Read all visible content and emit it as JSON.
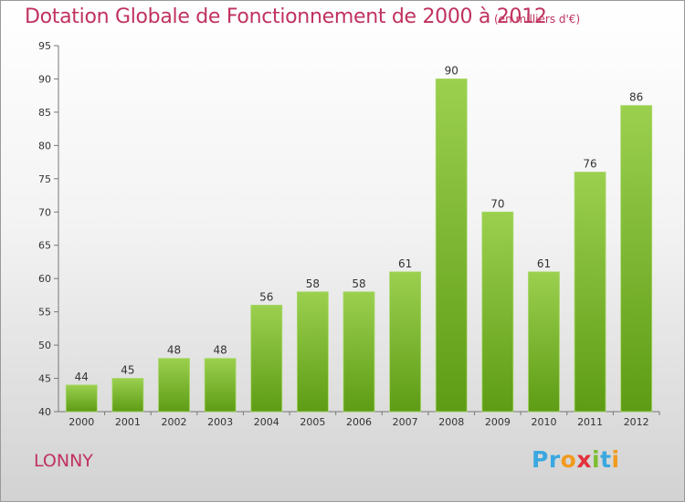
{
  "header": {
    "title": "Dotation Globale de Fonctionnement de 2000 à 2012",
    "subtitle": "(en milliers d'€)"
  },
  "footer": {
    "town": "LONNY",
    "logo_letters": [
      {
        "ch": "P",
        "color": "#3aa8e0"
      },
      {
        "ch": "r",
        "color": "#3aa8e0"
      },
      {
        "ch": "o",
        "color": "#f29a1f"
      },
      {
        "ch": "x",
        "color": "#e2323a"
      },
      {
        "ch": "i",
        "color": "#7cbf2f"
      },
      {
        "ch": "t",
        "color": "#3aa8e0"
      },
      {
        "ch": "i",
        "color": "#f29a1f"
      }
    ]
  },
  "chart_data": {
    "type": "bar",
    "categories": [
      "2000",
      "2001",
      "2002",
      "2003",
      "2004",
      "2005",
      "2006",
      "2007",
      "2008",
      "2009",
      "2010",
      "2011",
      "2012"
    ],
    "values": [
      44,
      45,
      48,
      48,
      56,
      58,
      58,
      61,
      90,
      70,
      61,
      76,
      86
    ],
    "data_labels": [
      "44",
      "45",
      "48",
      "48",
      "56",
      "58",
      "58",
      "61",
      "90",
      "70",
      "61",
      "76",
      "86"
    ],
    "title": "Dotation Globale de Fonctionnement de 2000 à 2012",
    "subtitle": "(en milliers d'€)",
    "xlabel": "",
    "ylabel": "",
    "ylim": [
      40,
      95
    ],
    "yticks": [
      40,
      45,
      50,
      55,
      60,
      65,
      70,
      75,
      80,
      85,
      90,
      95
    ],
    "grid": false,
    "bar_color_top": "#9bd04f",
    "bar_color_bottom": "#5e9c15",
    "text_color": "#c0325f"
  }
}
